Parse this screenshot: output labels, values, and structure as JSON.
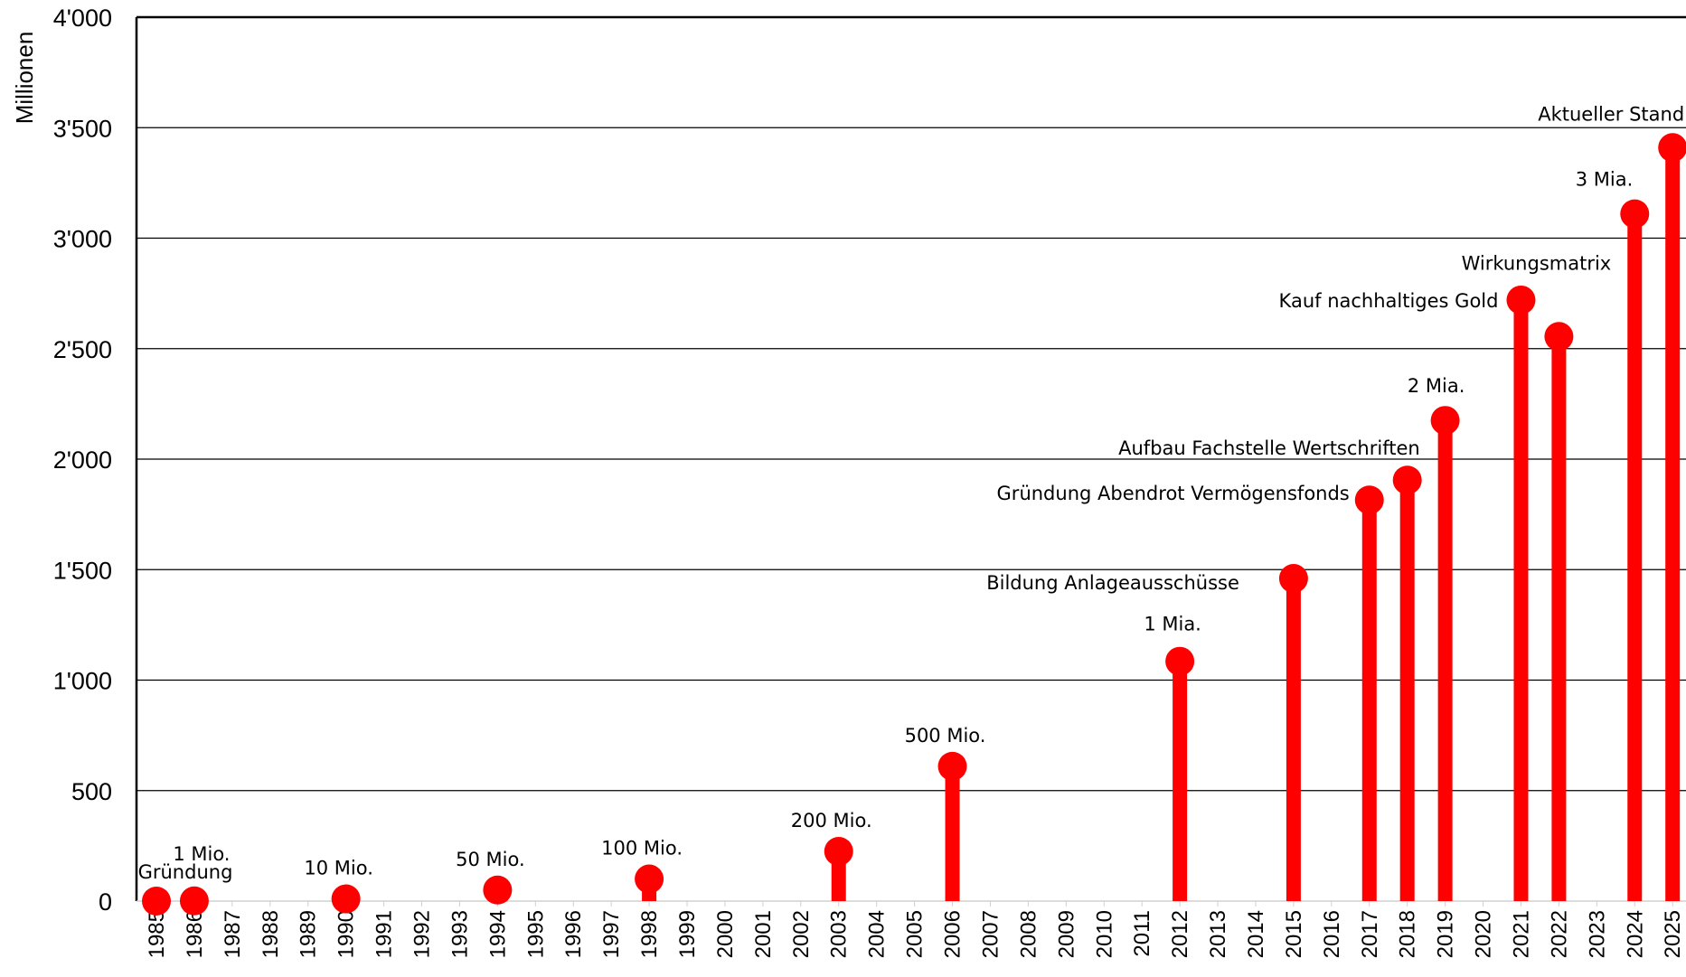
{
  "chart_data": {
    "type": "bar",
    "title": "",
    "ylabel": "Millionen",
    "xlabel": "",
    "ylim": [
      0,
      4000
    ],
    "yticks": [
      0,
      500,
      1000,
      1500,
      2000,
      2500,
      3000,
      3500,
      4000
    ],
    "ytick_labels": [
      "0",
      "500",
      "1'000",
      "1'500",
      "2'000",
      "2'500",
      "3'000",
      "3'500",
      "4'000"
    ],
    "x_start": 1985,
    "x_end": 2025,
    "grid": "horizontal",
    "bar_color": "#ff0000",
    "points": [
      {
        "year": 1985,
        "value": 0,
        "label": "Gründung"
      },
      {
        "year": 1986,
        "value": 1,
        "label": "1 Mio."
      },
      {
        "year": 1990,
        "value": 10,
        "label": "10 Mio."
      },
      {
        "year": 1994,
        "value": 50,
        "label": "50 Mio."
      },
      {
        "year": 1998,
        "value": 100,
        "label": "100 Mio."
      },
      {
        "year": 2003,
        "value": 225,
        "label": "200 Mio."
      },
      {
        "year": 2006,
        "value": 610,
        "label": "500 Mio."
      },
      {
        "year": 2012,
        "value": 1085,
        "label": "1 Mia."
      },
      {
        "year": 2015,
        "value": 1460,
        "label": "Bildung Anlageausschüsse"
      },
      {
        "year": 2017,
        "value": 1815,
        "label": "Gründung Abendrot Vermögensfonds"
      },
      {
        "year": 2018,
        "value": 1905,
        "label": "Aufbau Fachstelle Wertschriften"
      },
      {
        "year": 2019,
        "value": 2175,
        "label": "2 Mia."
      },
      {
        "year": 2021,
        "value": 2720,
        "label": "Kauf nachhaltiges Gold"
      },
      {
        "year": 2022,
        "value": 2555,
        "label": "Wirkungsmatrix"
      },
      {
        "year": 2024,
        "value": 3110,
        "label": "3 Mia."
      },
      {
        "year": 2025,
        "value": 3410,
        "label": "Aktueller Stand"
      }
    ]
  }
}
